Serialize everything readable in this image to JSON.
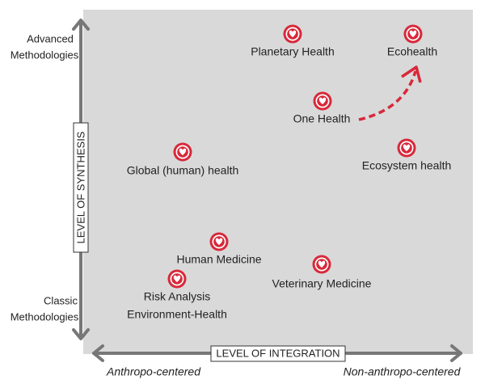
{
  "axes": {
    "y_label": "LEVEL OF SYNTHESIS",
    "x_label": "LEVEL OF INTEGRATION",
    "y_top": [
      "Advanced",
      "Methodologies"
    ],
    "y_bottom": [
      "Classic",
      "Methodologies"
    ],
    "x_left": "Anthropo-centered",
    "x_right": "Non-anthropo-centered"
  },
  "nodes": [
    {
      "label": [
        "Planetary Health"
      ]
    },
    {
      "label": [
        "Ecohealth"
      ]
    },
    {
      "label": [
        "One Health"
      ]
    },
    {
      "label": [
        "Global (human) health"
      ]
    },
    {
      "label": [
        "Ecosystem health"
      ]
    },
    {
      "label": [
        "Human Medicine"
      ]
    },
    {
      "label": [
        "Veterinary Medicine"
      ]
    },
    {
      "label": [
        "Risk Analysis",
        "Environment-Health"
      ]
    }
  ]
}
